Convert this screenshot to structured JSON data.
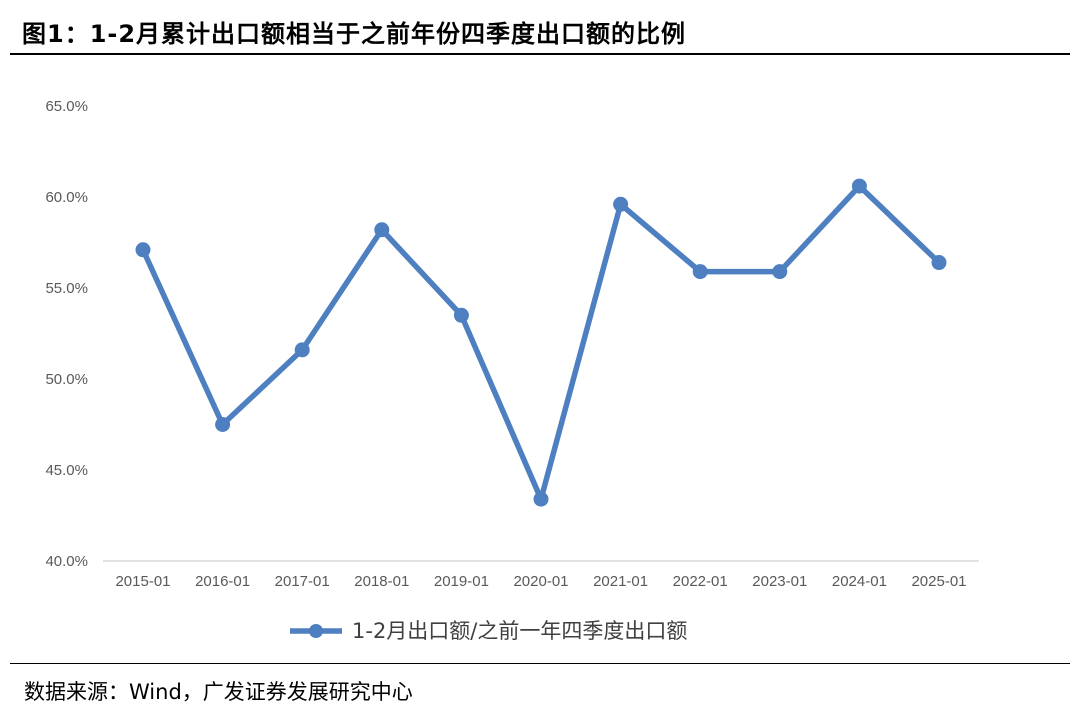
{
  "title": "图1：1-2月累计出口额相当于之前年份四季度出口额的比例",
  "source": "数据来源：Wind，广发证券发展研究中心",
  "colors": {
    "series": "#4e7fc0",
    "axis": "#d9d9d9",
    "tick_text": "#595959"
  },
  "chart_data": {
    "type": "line",
    "title": "",
    "xlabel": "",
    "ylabel": "",
    "categories": [
      "2015-01",
      "2016-01",
      "2017-01",
      "2018-01",
      "2019-01",
      "2020-01",
      "2021-01",
      "2022-01",
      "2023-01",
      "2024-01",
      "2025-01"
    ],
    "series": [
      {
        "name": "1-2月出口额/之前一年四季度出口额",
        "values": [
          57.1,
          47.5,
          51.6,
          58.2,
          53.5,
          43.4,
          59.6,
          55.9,
          55.9,
          60.6,
          56.4
        ]
      }
    ],
    "ylim": [
      40,
      65
    ],
    "yticks": [
      "40.0%",
      "45.0%",
      "50.0%",
      "55.0%",
      "60.0%",
      "65.0%"
    ],
    "grid": false,
    "legend": "bottom-center"
  }
}
